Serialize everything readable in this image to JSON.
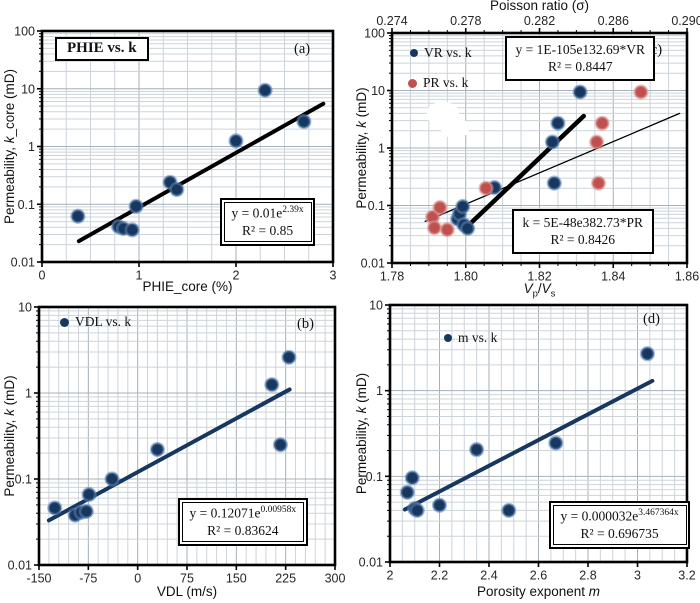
{
  "figure": {
    "bg": "#ffffff",
    "colors": {
      "marker_blue": "#17375E",
      "marker_blue_halo": "#5B83B4",
      "marker_red": "#C0504D",
      "marker_red_halo": "#D99694",
      "trend_navy": "#17375E",
      "trend_black": "#000000",
      "grid_minor": "#ccd4da",
      "grid_major": "#a6b1b9",
      "frame": "#000000",
      "tick_text": "#262626"
    }
  },
  "chart_data": [
    {
      "id": "a",
      "type": "scatter",
      "panel_label": "(a)",
      "title_box": "PHIE vs. k",
      "x": {
        "label": "PHIE_core (%)",
        "min": 0,
        "max": 3,
        "minor_step": 0.25,
        "minor_ticks": false,
        "ticks": [
          {
            "v": 0,
            "t": "0"
          },
          {
            "v": 1,
            "t": "1"
          },
          {
            "v": 2,
            "t": "2"
          },
          {
            "v": 3,
            "t": "3"
          }
        ]
      },
      "y": {
        "label_pre": "Permeability, ",
        "label_it": "k",
        "label_post": "_core (mD)",
        "scale": "log",
        "min": 0.01,
        "max": 100,
        "ticks": [
          {
            "v": 100,
            "t": "100"
          },
          {
            "v": 10,
            "t": "10"
          },
          {
            "v": 1,
            "t": "1"
          },
          {
            "v": 0.1,
            "t": "0.1"
          },
          {
            "v": 0.01,
            "t": "0.01"
          }
        ]
      },
      "series": [
        {
          "name": "PHIE vs. k",
          "color_key": "marker_blue",
          "axis": "x",
          "points": [
            [
              0.37,
              0.062
            ],
            [
              0.79,
              0.041
            ],
            [
              0.84,
              0.038
            ],
            [
              0.93,
              0.036
            ],
            [
              0.97,
              0.092
            ],
            [
              1.32,
              0.24
            ],
            [
              1.39,
              0.18
            ],
            [
              2.0,
              1.25
            ],
            [
              2.3,
              9.4
            ],
            [
              2.7,
              2.7
            ]
          ]
        }
      ],
      "trends": [
        {
          "color_key": "trend_black",
          "width": 4,
          "axis": "x",
          "points": [
            [
              0.38,
              0.023
            ],
            [
              2.9,
              5.5
            ]
          ]
        }
      ],
      "equations": [
        {
          "pre": "y = 0.01e",
          "sup": "2.39x",
          "r2": "R² = 0.85"
        }
      ]
    },
    {
      "id": "b",
      "type": "scatter",
      "panel_label": "(b)",
      "legend": [
        {
          "label": "VDL vs. k",
          "color_key": "marker_blue"
        }
      ],
      "x": {
        "label": "VDL (m/s)",
        "min": -150,
        "max": 300,
        "minor_step": 15,
        "minor_ticks": false,
        "ticks": [
          {
            "v": -150,
            "t": "-150"
          },
          {
            "v": -75,
            "t": "-75"
          },
          {
            "v": 0,
            "t": "0"
          },
          {
            "v": 75,
            "t": "75"
          },
          {
            "v": 150,
            "t": "150"
          },
          {
            "v": 225,
            "t": "225"
          },
          {
            "v": 300,
            "t": "300"
          }
        ]
      },
      "y": {
        "label_pre": "Permeability, ",
        "label_it": "k",
        "label_post": " (mD)",
        "scale": "log",
        "min": 0.01,
        "max": 10,
        "ticks": [
          {
            "v": 10,
            "t": "10"
          },
          {
            "v": 1,
            "t": "1"
          },
          {
            "v": 0.1,
            "t": "0.1"
          },
          {
            "v": 0.01,
            "t": "0.01"
          }
        ]
      },
      "series": [
        {
          "name": "VDL vs. k",
          "color_key": "marker_blue",
          "axis": "x",
          "points": [
            [
              -126,
              0.046
            ],
            [
              -95,
              0.038
            ],
            [
              -86,
              0.041
            ],
            [
              -78,
              0.042
            ],
            [
              -74,
              0.066
            ],
            [
              -39,
              0.1
            ],
            [
              30,
              0.22
            ],
            [
              204,
              1.25
            ],
            [
              217,
              0.25
            ],
            [
              230,
              2.6
            ]
          ]
        }
      ],
      "trends": [
        {
          "color_key": "trend_navy",
          "width": 4,
          "axis": "x",
          "points": [
            [
              -135,
              0.033
            ],
            [
              231,
              1.1
            ]
          ]
        }
      ],
      "equations": [
        {
          "pre": "y = 0.12071e",
          "sup": "0.00958x",
          "r2": "R² = 0.83624"
        }
      ]
    },
    {
      "id": "c",
      "type": "scatter",
      "panel_label": "(c)",
      "legend": [
        {
          "label": "VR vs. k",
          "color_key": "marker_blue"
        },
        {
          "label": "PR vs. k",
          "color_key": "marker_red"
        }
      ],
      "x": {
        "label_parts": {
          "v1": "V",
          "s1": "p",
          "slash": "/",
          "v2": "V",
          "s2": "s"
        },
        "min": 1.78,
        "max": 1.86,
        "minor_step": 0.005,
        "minor_ticks": true,
        "ticks": [
          {
            "v": 1.78,
            "t": "1.78"
          },
          {
            "v": 1.8,
            "t": "1.80"
          },
          {
            "v": 1.82,
            "t": "1.82"
          },
          {
            "v": 1.84,
            "t": "1.84"
          },
          {
            "v": 1.86,
            "t": "1.86"
          }
        ]
      },
      "x2": {
        "label": "Poisson ratio (σ)",
        "min": 0.274,
        "max": 0.29,
        "minor_step": 0.001,
        "ticks": [
          {
            "v": 0.274,
            "t": "0.274"
          },
          {
            "v": 0.278,
            "t": "0.278"
          },
          {
            "v": 0.282,
            "t": "0.282"
          },
          {
            "v": 0.286,
            "t": "0.286"
          },
          {
            "v": 0.29,
            "t": "0.290"
          }
        ]
      },
      "y": {
        "label_pre": "Permeability, ",
        "label_it": "k",
        "label_post": " (mD)",
        "scale": "log",
        "min": 0.01,
        "max": 100,
        "ticks": [
          {
            "v": 100,
            "t": "100"
          },
          {
            "v": 10,
            "t": "10"
          },
          {
            "v": 1,
            "t": "1"
          },
          {
            "v": 0.1,
            "t": "0.1"
          },
          {
            "v": 0.01,
            "t": "0.01"
          }
        ]
      },
      "series": [
        {
          "name": "VR vs. k",
          "color_key": "marker_blue",
          "axis": "x",
          "points": [
            [
              1.7978,
              0.058
            ],
            [
              1.7983,
              0.072
            ],
            [
              1.7992,
              0.096
            ],
            [
              1.7995,
              0.046
            ],
            [
              1.8005,
              0.04
            ],
            [
              1.8078,
              0.205
            ],
            [
              1.8235,
              1.27
            ],
            [
              1.825,
              2.7
            ],
            [
              1.824,
              0.245
            ],
            [
              1.831,
              9.4
            ]
          ]
        },
        {
          "name": "PR vs. k",
          "color_key": "marker_red",
          "axis": "x2",
          "points": [
            [
              0.2762,
              0.063
            ],
            [
              0.2766,
              0.092
            ],
            [
              0.2763,
              0.041
            ],
            [
              0.277,
              0.038
            ],
            [
              0.2791,
              0.2
            ],
            [
              0.2851,
              1.27
            ],
            [
              0.2854,
              2.7
            ],
            [
              0.2852,
              0.245
            ],
            [
              0.2875,
              9.4
            ]
          ]
        }
      ],
      "trends": [
        {
          "color_key": "trend_black",
          "width": 1.3,
          "axis": "x",
          "points": [
            [
              1.789,
              0.053
            ],
            [
              1.858,
              4.0
            ]
          ]
        },
        {
          "color_key": "trend_black",
          "width": 4.5,
          "axis": "x",
          "points": [
            [
              1.7995,
              0.038
            ],
            [
              1.832,
              3.6
            ]
          ]
        }
      ],
      "equations": [
        {
          "pre": "y = 1E-105e132.69*VR",
          "r2": "R² = 0.8447"
        },
        {
          "pre": "k = 5E-48e382.73*PR",
          "r2": "R² = 0.8426"
        }
      ]
    },
    {
      "id": "d",
      "type": "scatter",
      "panel_label": "(d)",
      "legend": [
        {
          "label": "m vs. k",
          "color_key": "marker_blue"
        }
      ],
      "x": {
        "label_pre": "Porosity exponent ",
        "label_it": "m",
        "min": 2,
        "max": 3.2,
        "minor_step": 0.05,
        "minor_ticks": false,
        "ticks": [
          {
            "v": 2,
            "t": "2"
          },
          {
            "v": 2.2,
            "t": "2.2"
          },
          {
            "v": 2.4,
            "t": "2.4"
          },
          {
            "v": 2.6,
            "t": "2.6"
          },
          {
            "v": 2.8,
            "t": "2.8"
          },
          {
            "v": 3,
            "t": "3"
          },
          {
            "v": 3.2,
            "t": "3.2"
          }
        ]
      },
      "y": {
        "label_pre": "Permeability, ",
        "label_it": "k",
        "label_post": " (mD)",
        "scale": "log",
        "min": 0.01,
        "max": 10,
        "ticks": [
          {
            "v": 10,
            "t": "10"
          },
          {
            "v": 1,
            "t": "1"
          },
          {
            "v": 0.1,
            "t": "0.1"
          },
          {
            "v": 0.01,
            "t": "0.01"
          }
        ]
      },
      "series": [
        {
          "name": "m vs. k",
          "color_key": "marker_blue",
          "axis": "x",
          "points": [
            [
              2.07,
              0.065
            ],
            [
              2.09,
              0.096
            ],
            [
              2.1,
              0.042
            ],
            [
              2.11,
              0.04
            ],
            [
              2.2,
              0.046
            ],
            [
              2.35,
              0.205
            ],
            [
              2.48,
              0.04
            ],
            [
              2.67,
              0.245
            ],
            [
              3.04,
              2.7
            ]
          ]
        }
      ],
      "trends": [
        {
          "color_key": "trend_navy",
          "width": 4,
          "axis": "x",
          "points": [
            [
              2.06,
              0.041
            ],
            [
              3.06,
              1.3
            ]
          ]
        }
      ],
      "equations": [
        {
          "pre": "y = 0.000032e",
          "sup": "3.467364x",
          "r2": "R² = 0.696735"
        }
      ]
    }
  ]
}
